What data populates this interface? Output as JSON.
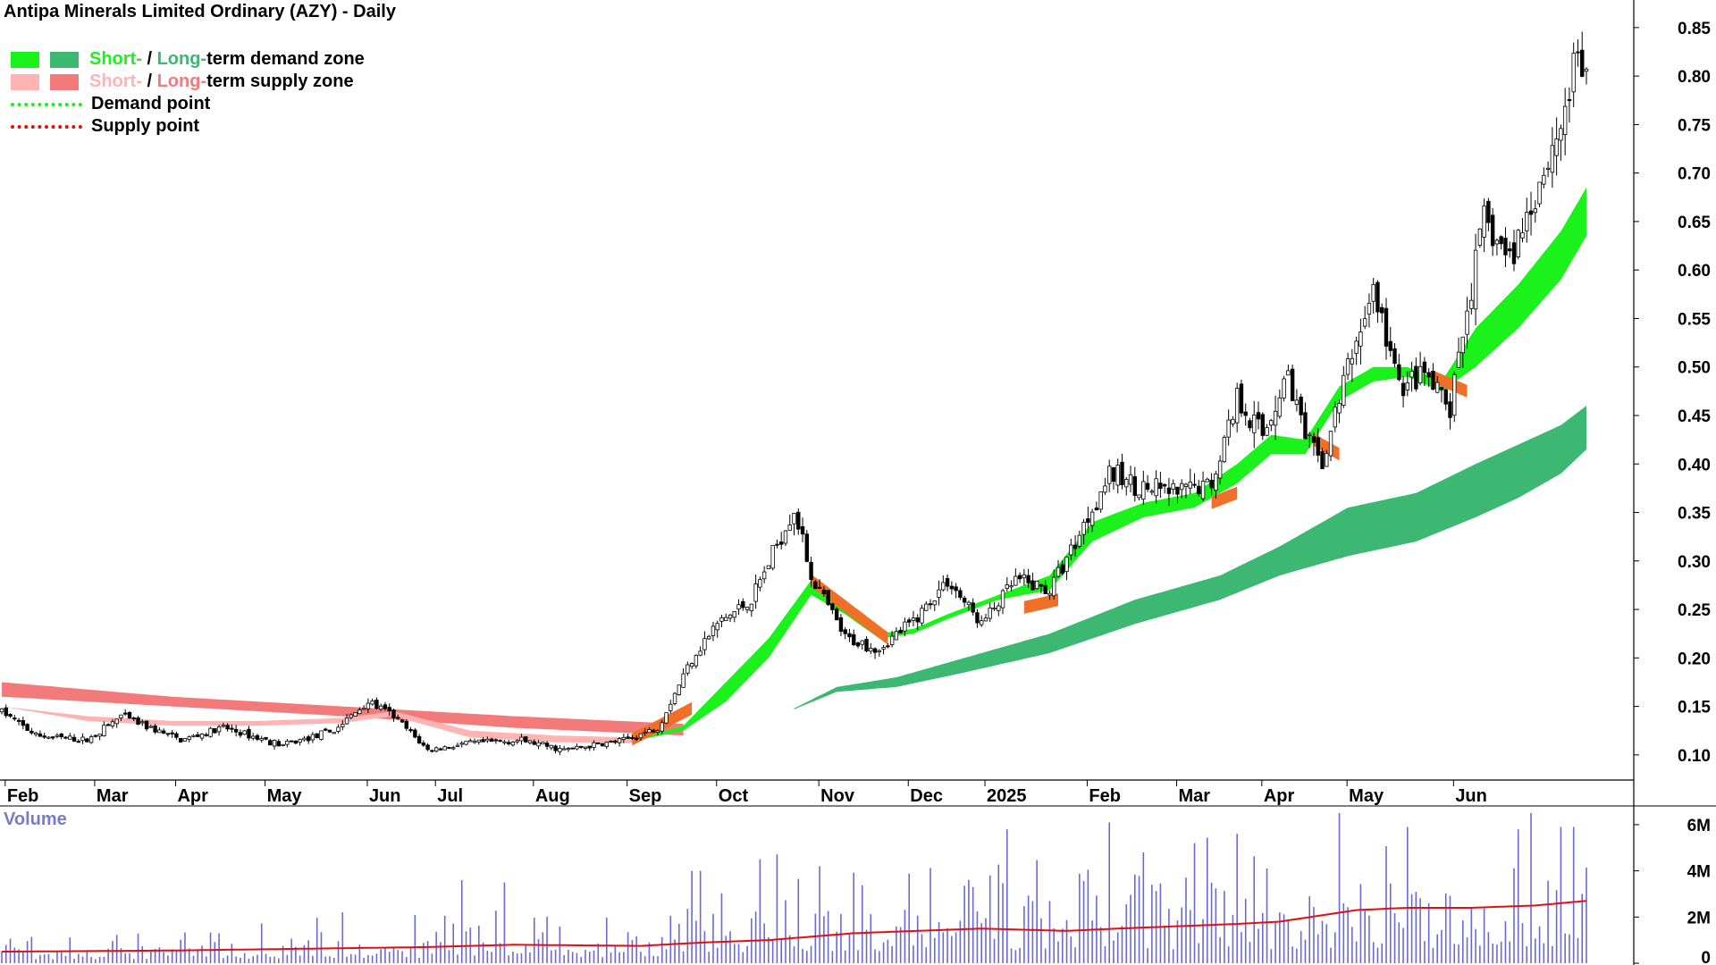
{
  "title": "Antipa Minerals Limited Ordinary (AZY) - Daily",
  "legend": {
    "row1": {
      "short": "Short-",
      "sep": " / ",
      "long": "Long-",
      "text": "term demand zone"
    },
    "row2": {
      "short": "Short-",
      "sep": " / ",
      "long": "Long-",
      "text": "term supply zone"
    },
    "row3": "Demand point",
    "row4": "Supply point"
  },
  "colors": {
    "short_demand": "#1bf21b",
    "long_demand": "#3db873",
    "short_supply": "#ffb3b3",
    "long_supply": "#f27a7a",
    "transition": "#f0702a",
    "volume_bar": "#6a6ad6",
    "volume_ma": "#e01010",
    "legend_short_text": "#1bf21b",
    "legend_long_text": "#3db873",
    "legend_short_supply_text": "#ffb3b3",
    "legend_long_supply_text": "#f27a7a"
  },
  "volume_label": "Volume",
  "chart_data": [
    {
      "type": "candlestick",
      "title": "Antipa Minerals Limited Ordinary (AZY) - Daily",
      "y_axis_side": "right",
      "ylim": [
        0.075,
        0.86
      ],
      "y_ticks": [
        "0.10",
        "0.15",
        "0.20",
        "0.25",
        "0.30",
        "0.35",
        "0.40",
        "0.45",
        "0.50",
        "0.55",
        "0.60",
        "0.65",
        "0.70",
        "0.75",
        "0.80",
        "0.85"
      ],
      "x_labels": [
        "Feb",
        "Mar",
        "Apr",
        "May",
        "Jun",
        "Jul",
        "Aug",
        "Sep",
        "Oct",
        "Nov",
        "Dec",
        "2025",
        "Feb",
        "Mar",
        "Apr",
        "May",
        "Jun"
      ],
      "x_label_day_index": [
        5,
        26,
        45,
        66,
        90,
        106,
        129,
        151,
        172,
        196,
        217,
        235,
        259,
        280,
        300,
        320,
        345
      ],
      "close_anchors": [
        [
          0,
          0.145
        ],
        [
          8,
          0.12
        ],
        [
          20,
          0.115
        ],
        [
          28,
          0.14
        ],
        [
          42,
          0.115
        ],
        [
          52,
          0.128
        ],
        [
          66,
          0.11
        ],
        [
          78,
          0.125
        ],
        [
          86,
          0.155
        ],
        [
          92,
          0.14
        ],
        [
          100,
          0.105
        ],
        [
          110,
          0.112
        ],
        [
          122,
          0.115
        ],
        [
          132,
          0.105
        ],
        [
          146,
          0.115
        ],
        [
          154,
          0.128
        ],
        [
          162,
          0.2
        ],
        [
          168,
          0.235
        ],
        [
          176,
          0.26
        ],
        [
          186,
          0.355
        ],
        [
          190,
          0.285
        ],
        [
          198,
          0.22
        ],
        [
          206,
          0.21
        ],
        [
          214,
          0.238
        ],
        [
          222,
          0.28
        ],
        [
          230,
          0.235
        ],
        [
          238,
          0.28
        ],
        [
          246,
          0.27
        ],
        [
          252,
          0.32
        ],
        [
          260,
          0.39
        ],
        [
          268,
          0.375
        ],
        [
          276,
          0.37
        ],
        [
          284,
          0.38
        ],
        [
          290,
          0.47
        ],
        [
          296,
          0.43
        ],
        [
          302,
          0.495
        ],
        [
          306,
          0.425
        ],
        [
          310,
          0.4
        ],
        [
          316,
          0.5
        ],
        [
          322,
          0.58
        ],
        [
          328,
          0.48
        ],
        [
          334,
          0.49
        ],
        [
          340,
          0.455
        ],
        [
          344,
          0.56
        ],
        [
          348,
          0.65
        ],
        [
          354,
          0.61
        ],
        [
          360,
          0.68
        ],
        [
          366,
          0.75
        ],
        [
          370,
          0.82
        ],
        [
          372,
          0.8
        ]
      ],
      "short_demand_zone": {
        "upper": [
          [
            148,
            0.115
          ],
          [
            160,
            0.13
          ],
          [
            170,
            0.175
          ],
          [
            180,
            0.22
          ],
          [
            190,
            0.28
          ],
          [
            198,
            0.255
          ],
          [
            206,
            0.225
          ],
          [
            214,
            0.23
          ],
          [
            222,
            0.245
          ],
          [
            234,
            0.265
          ],
          [
            246,
            0.285
          ],
          [
            256,
            0.34
          ],
          [
            268,
            0.36
          ],
          [
            280,
            0.37
          ],
          [
            290,
            0.4
          ],
          [
            298,
            0.43
          ],
          [
            306,
            0.425
          ],
          [
            314,
            0.48
          ],
          [
            322,
            0.5
          ],
          [
            330,
            0.5
          ],
          [
            338,
            0.485
          ],
          [
            346,
            0.54
          ],
          [
            356,
            0.585
          ],
          [
            366,
            0.64
          ],
          [
            372,
            0.685
          ]
        ],
        "lower": [
          [
            148,
            0.114
          ],
          [
            160,
            0.125
          ],
          [
            170,
            0.155
          ],
          [
            180,
            0.2
          ],
          [
            190,
            0.265
          ],
          [
            198,
            0.245
          ],
          [
            206,
            0.22
          ],
          [
            214,
            0.225
          ],
          [
            222,
            0.24
          ],
          [
            234,
            0.26
          ],
          [
            246,
            0.27
          ],
          [
            256,
            0.32
          ],
          [
            268,
            0.345
          ],
          [
            280,
            0.355
          ],
          [
            290,
            0.38
          ],
          [
            298,
            0.41
          ],
          [
            306,
            0.41
          ],
          [
            314,
            0.465
          ],
          [
            322,
            0.485
          ],
          [
            330,
            0.49
          ],
          [
            338,
            0.475
          ],
          [
            346,
            0.5
          ],
          [
            356,
            0.54
          ],
          [
            366,
            0.59
          ],
          [
            372,
            0.635
          ]
        ]
      },
      "long_demand_zone": {
        "upper": [
          [
            186,
            0.148
          ],
          [
            196,
            0.17
          ],
          [
            210,
            0.18
          ],
          [
            226,
            0.2
          ],
          [
            246,
            0.225
          ],
          [
            266,
            0.26
          ],
          [
            286,
            0.285
          ],
          [
            300,
            0.315
          ],
          [
            316,
            0.355
          ],
          [
            332,
            0.37
          ],
          [
            346,
            0.4
          ],
          [
            356,
            0.42
          ],
          [
            366,
            0.44
          ],
          [
            372,
            0.46
          ]
        ],
        "lower": [
          [
            186,
            0.147
          ],
          [
            196,
            0.165
          ],
          [
            210,
            0.17
          ],
          [
            226,
            0.185
          ],
          [
            246,
            0.205
          ],
          [
            266,
            0.235
          ],
          [
            286,
            0.26
          ],
          [
            300,
            0.285
          ],
          [
            316,
            0.305
          ],
          [
            332,
            0.32
          ],
          [
            346,
            0.345
          ],
          [
            356,
            0.365
          ],
          [
            366,
            0.39
          ],
          [
            372,
            0.415
          ]
        ]
      },
      "short_supply_zone": {
        "upper": [
          [
            0,
            0.15
          ],
          [
            20,
            0.14
          ],
          [
            40,
            0.135
          ],
          [
            60,
            0.135
          ],
          [
            80,
            0.138
          ],
          [
            92,
            0.145
          ],
          [
            110,
            0.125
          ],
          [
            130,
            0.12
          ],
          [
            148,
            0.118
          ]
        ],
        "lower": [
          [
            0,
            0.15
          ],
          [
            20,
            0.135
          ],
          [
            40,
            0.13
          ],
          [
            60,
            0.13
          ],
          [
            80,
            0.133
          ],
          [
            92,
            0.14
          ],
          [
            110,
            0.118
          ],
          [
            130,
            0.113
          ],
          [
            148,
            0.112
          ]
        ]
      },
      "long_supply_zone": {
        "upper": [
          [
            0,
            0.175
          ],
          [
            40,
            0.16
          ],
          [
            80,
            0.15
          ],
          [
            120,
            0.14
          ],
          [
            160,
            0.132
          ]
        ],
        "lower": [
          [
            0,
            0.16
          ],
          [
            40,
            0.15
          ],
          [
            80,
            0.14
          ],
          [
            120,
            0.128
          ],
          [
            160,
            0.12
          ]
        ]
      },
      "transition_segments": [
        [
          [
            148,
            0.116
          ],
          [
            162,
            0.148
          ]
        ],
        [
          [
            190,
            0.28
          ],
          [
            208,
            0.22
          ]
        ],
        [
          [
            240,
            0.252
          ],
          [
            248,
            0.26
          ]
        ],
        [
          [
            284,
            0.36
          ],
          [
            290,
            0.37
          ]
        ],
        [
          [
            308,
            0.425
          ],
          [
            314,
            0.41
          ]
        ],
        [
          [
            336,
            0.49
          ],
          [
            344,
            0.475
          ]
        ]
      ]
    },
    {
      "type": "bar",
      "title": "Volume",
      "y_ticks": [
        "0",
        "2M",
        "4M",
        "6M"
      ],
      "ylim": [
        0,
        6500000
      ],
      "volume_anchors": [
        [
          0,
          0.6
        ],
        [
          40,
          0.7
        ],
        [
          80,
          0.9
        ],
        [
          120,
          1.0
        ],
        [
          150,
          1.0
        ],
        [
          165,
          1.8
        ],
        [
          200,
          2.0
        ],
        [
          240,
          2.0
        ],
        [
          260,
          2.2
        ],
        [
          290,
          2.4
        ],
        [
          320,
          2.6
        ],
        [
          345,
          2.6
        ],
        [
          372,
          2.9
        ]
      ],
      "ma_anchors": [
        [
          0,
          0.5
        ],
        [
          40,
          0.55
        ],
        [
          80,
          0.65
        ],
        [
          100,
          0.7
        ],
        [
          120,
          0.8
        ],
        [
          150,
          0.75
        ],
        [
          165,
          0.9
        ],
        [
          180,
          1.0
        ],
        [
          200,
          1.3
        ],
        [
          230,
          1.5
        ],
        [
          250,
          1.4
        ],
        [
          262,
          1.5
        ],
        [
          290,
          1.7
        ],
        [
          300,
          1.8
        ],
        [
          318,
          2.3
        ],
        [
          330,
          2.4
        ],
        [
          345,
          2.4
        ],
        [
          360,
          2.5
        ],
        [
          372,
          2.7
        ]
      ],
      "volume_spikes": [
        [
          178,
          4.5
        ],
        [
          192,
          4.2
        ],
        [
          236,
          5.8
        ],
        [
          260,
          6.1
        ],
        [
          268,
          4.8
        ],
        [
          290,
          5.6
        ],
        [
          314,
          6.6
        ],
        [
          330,
          5.9
        ],
        [
          356,
          5.8
        ],
        [
          366,
          5.9
        ],
        [
          369,
          5.9
        ],
        [
          162,
          4.0
        ],
        [
          164,
          4.0
        ],
        [
          108,
          3.6
        ],
        [
          118,
          3.5
        ],
        [
          228,
          3.3
        ],
        [
          280,
          5.2
        ]
      ]
    }
  ]
}
